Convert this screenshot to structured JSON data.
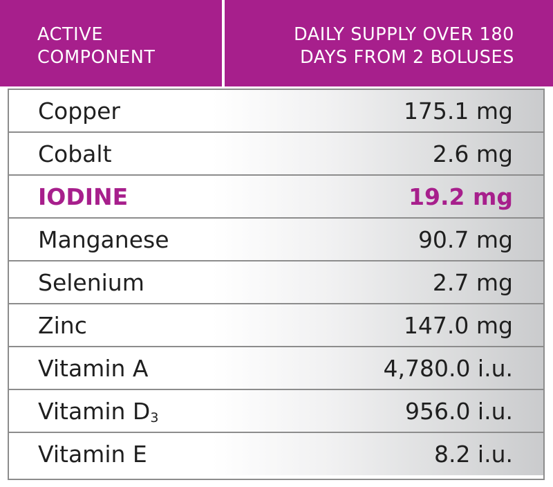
{
  "header": {
    "col1_line1": "ACTIVE",
    "col1_line2": "COMPONENT",
    "col2_line1": "DAILY SUPPLY OVER 180",
    "col2_line2": "DAYS FROM 2 BOLUSES"
  },
  "rows": [
    {
      "name": "Copper",
      "value": "175.1 mg"
    },
    {
      "name": "Cobalt",
      "value": "2.6 mg"
    },
    {
      "name": "IODINE",
      "value": "19.2 mg"
    },
    {
      "name": "Manganese",
      "value": "90.7 mg"
    },
    {
      "name": "Selenium",
      "value": "2.7 mg"
    },
    {
      "name": "Zinc",
      "value": "147.0 mg"
    },
    {
      "name": "Vitamin A",
      "value": "4,780.0 i.u."
    },
    {
      "name": "Vitamin D",
      "name_subscript": "3",
      "value": "956.0 i.u."
    },
    {
      "name": "Vitamin E",
      "value": "8.2 i.u."
    }
  ],
  "colors": {
    "accent": "#a71f8c",
    "text": "#1f1f1f",
    "border": "#8c8c8c"
  }
}
